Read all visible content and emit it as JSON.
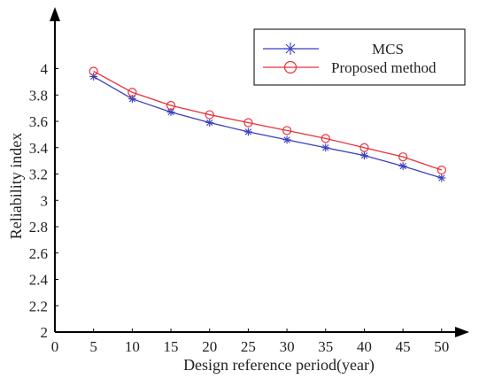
{
  "chart_data": {
    "type": "line",
    "xlabel": "Design reference period(year)",
    "ylabel": "Reliability index",
    "x_ticks": [
      0,
      5,
      10,
      15,
      20,
      25,
      30,
      35,
      40,
      45,
      50
    ],
    "y_ticks": [
      2,
      2.2,
      2.4,
      2.6,
      2.8,
      3,
      3.2,
      3.4,
      3.6,
      3.8,
      4
    ],
    "xlim": [
      0,
      53
    ],
    "ylim": [
      2,
      4.4
    ],
    "grid": false,
    "legend_position": "top-right",
    "x": [
      5,
      10,
      15,
      20,
      25,
      30,
      35,
      40,
      45,
      50
    ],
    "series": [
      {
        "name": "MCS",
        "color": "#3a3fbf",
        "marker": "asterisk",
        "values": [
          3.94,
          3.77,
          3.67,
          3.59,
          3.52,
          3.46,
          3.4,
          3.34,
          3.26,
          3.17
        ]
      },
      {
        "name": "Proposed method",
        "color": "#e8303a",
        "marker": "circle",
        "values": [
          3.98,
          3.82,
          3.72,
          3.65,
          3.59,
          3.53,
          3.47,
          3.4,
          3.33,
          3.23
        ]
      }
    ]
  }
}
